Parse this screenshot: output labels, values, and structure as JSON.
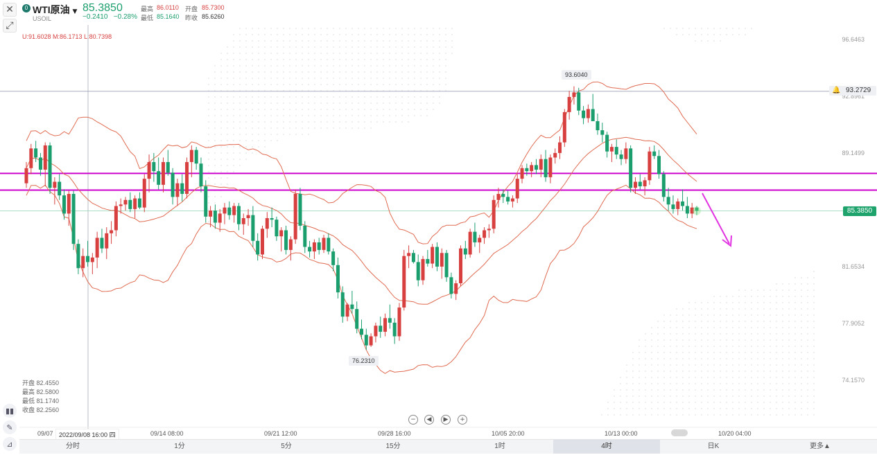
{
  "header": {
    "symbol_name": "WTI原油",
    "symbol_code": "USOIL",
    "symbol_badge": "0",
    "dropdown_icon": "caret-down-icon",
    "price": "85.3850",
    "change": "−0.2410",
    "change_pct": "−0.28%",
    "high_label": "最高",
    "high_value": "86.0110",
    "open_label": "开盘",
    "open_value": "85.7300",
    "low_label": "最低",
    "low_value": "85.1640",
    "prevclose_label": "昨收",
    "prevclose_value": "85.6260"
  },
  "boll": "U:91.6028 M:86.1713 L:80.7398",
  "ohlc_box": {
    "open": "开盘 82.4550",
    "high": "最高 82.5800",
    "low": "最低 81.1740",
    "close": "收盘 82.2560"
  },
  "cursor_time": "2022/09/08 16:00 四",
  "colors": {
    "up": "#d84040",
    "down": "#1a9e6e",
    "band": "#e06a50",
    "hline": "#cc00cc",
    "arrow": "#e233e2",
    "last": "#1da36b"
  },
  "icons": [
    "close-icon",
    "expand-icon",
    "indicator-icon",
    "pencil-icon",
    "measure-icon",
    "bell-icon"
  ],
  "nav": [
    "zoom-out-icon",
    "step-back-icon",
    "step-forward-icon",
    "zoom-in-icon"
  ],
  "tabs": [
    "分时",
    "1分",
    "5分",
    "15分",
    "1时",
    "4时",
    "日K",
    "更多▲"
  ],
  "active_tab": "4时",
  "chart_data": {
    "type": "candlestick",
    "interval": "4时",
    "y_axis_ticks": [
      96.6463,
      92.8961,
      89.1499,
      85.385,
      81.6534,
      77.9052,
      74.157
    ],
    "y_tick_labels": [
      "96.6463",
      "92.8961",
      "89.1499",
      "81.6534",
      "77.9052",
      "74.1570"
    ],
    "ylim": [
      72.6,
      98.8
    ],
    "x_axis_ticks": [
      "09/07",
      "09/14 08:00",
      "09/21 12:00",
      "09/28 16:00",
      "10/05 20:00",
      "10/13 00:00",
      "10/20 04:00"
    ],
    "last_price": "85.3850",
    "alert_price": "93.2729",
    "max_label": "93.6040",
    "min_label": "76.2310",
    "horizontal_lines": [
      87.85,
      86.75
    ],
    "bollinger": {
      "upper": "91.6028",
      "middle": "86.1713",
      "lower": "80.7398"
    },
    "candles_ohlc": [
      [
        87.2,
        88.6,
        86.9,
        88.2
      ],
      [
        88.2,
        89.8,
        87.8,
        89.5
      ],
      [
        89.5,
        90.0,
        88.6,
        88.9
      ],
      [
        88.9,
        89.2,
        87.7,
        88.1
      ],
      [
        88.1,
        89.9,
        87.0,
        89.7
      ],
      [
        89.7,
        89.9,
        86.5,
        86.9
      ],
      [
        86.9,
        87.6,
        85.8,
        87.3
      ],
      [
        87.3,
        87.8,
        86.1,
        86.4
      ],
      [
        86.4,
        86.8,
        84.8,
        85.2
      ],
      [
        85.2,
        86.7,
        84.4,
        86.5
      ],
      [
        86.5,
        86.7,
        82.8,
        83.2
      ],
      [
        83.2,
        83.5,
        81.2,
        81.6
      ],
      [
        81.6,
        82.9,
        81.0,
        82.4
      ],
      [
        82.4,
        83.4,
        81.7,
        82.0
      ],
      [
        82.0,
        82.6,
        81.2,
        82.3
      ],
      [
        82.3,
        84.0,
        81.6,
        83.6
      ],
      [
        83.6,
        84.2,
        82.6,
        82.9
      ],
      [
        82.9,
        84.3,
        82.2,
        83.9
      ],
      [
        83.9,
        84.7,
        83.2,
        84.1
      ],
      [
        84.1,
        86.0,
        83.7,
        85.7
      ],
      [
        85.7,
        86.2,
        85.2,
        85.8
      ],
      [
        85.8,
        86.3,
        85.4,
        86.1
      ],
      [
        86.1,
        86.6,
        85.3,
        85.5
      ],
      [
        85.5,
        86.4,
        84.9,
        86.2
      ],
      [
        86.2,
        86.6,
        85.5,
        85.6
      ],
      [
        85.6,
        87.8,
        85.3,
        87.5
      ],
      [
        87.5,
        89.1,
        86.6,
        88.6
      ],
      [
        88.6,
        89.2,
        87.3,
        88.0
      ],
      [
        88.0,
        88.9,
        86.8,
        87.1
      ],
      [
        87.1,
        88.9,
        86.6,
        88.6
      ],
      [
        88.6,
        89.4,
        87.7,
        87.9
      ],
      [
        87.9,
        88.2,
        85.8,
        86.3
      ],
      [
        86.3,
        87.5,
        85.7,
        87.2
      ],
      [
        87.2,
        87.8,
        86.0,
        86.5
      ],
      [
        86.5,
        88.9,
        86.2,
        88.6
      ],
      [
        88.6,
        89.7,
        87.6,
        89.4
      ],
      [
        89.4,
        89.6,
        88.1,
        88.5
      ],
      [
        88.5,
        88.9,
        86.6,
        87.0
      ],
      [
        87.0,
        87.4,
        84.6,
        85.0
      ],
      [
        85.0,
        85.7,
        84.3,
        85.4
      ],
      [
        85.4,
        85.8,
        84.2,
        84.6
      ],
      [
        84.6,
        85.5,
        84.0,
        85.2
      ],
      [
        85.2,
        85.9,
        84.5,
        85.6
      ],
      [
        85.6,
        86.0,
        84.8,
        85.1
      ],
      [
        85.1,
        85.9,
        84.6,
        85.7
      ],
      [
        85.7,
        85.9,
        84.1,
        84.5
      ],
      [
        84.5,
        85.2,
        83.8,
        84.9
      ],
      [
        84.9,
        85.5,
        84.4,
        85.1
      ],
      [
        85.1,
        85.7,
        83.0,
        83.4
      ],
      [
        83.4,
        83.9,
        82.1,
        82.5
      ],
      [
        82.5,
        84.4,
        82.2,
        84.2
      ],
      [
        84.2,
        85.3,
        83.6,
        84.9
      ],
      [
        84.9,
        85.6,
        84.3,
        84.8
      ],
      [
        84.8,
        85.0,
        83.4,
        83.7
      ],
      [
        83.7,
        84.3,
        82.7,
        84.1
      ],
      [
        84.1,
        84.4,
        82.5,
        82.8
      ],
      [
        82.8,
        83.7,
        82.1,
        83.5
      ],
      [
        83.5,
        86.8,
        83.2,
        86.5
      ],
      [
        86.5,
        86.9,
        84.1,
        84.4
      ],
      [
        84.4,
        84.7,
        82.6,
        83.0
      ],
      [
        83.0,
        83.4,
        82.3,
        82.7
      ],
      [
        82.7,
        83.5,
        82.2,
        83.3
      ],
      [
        83.3,
        83.6,
        82.5,
        82.8
      ],
      [
        82.8,
        83.8,
        82.6,
        83.6
      ],
      [
        83.6,
        83.9,
        82.5,
        82.7
      ],
      [
        82.7,
        82.9,
        81.4,
        81.8
      ],
      [
        81.8,
        82.3,
        79.6,
        80.0
      ],
      [
        80.0,
        80.4,
        78.0,
        78.4
      ],
      [
        78.4,
        79.3,
        78.1,
        79.2
      ],
      [
        79.2,
        80.1,
        78.6,
        78.9
      ],
      [
        78.9,
        79.4,
        77.3,
        77.6
      ],
      [
        77.6,
        78.2,
        76.9,
        77.2
      ],
      [
        77.2,
        77.6,
        76.2,
        76.5
      ],
      [
        76.5,
        77.3,
        76.4,
        77.1
      ],
      [
        77.1,
        78.0,
        76.7,
        77.8
      ],
      [
        77.8,
        78.4,
        77.0,
        77.4
      ],
      [
        77.4,
        78.6,
        77.1,
        78.3
      ],
      [
        78.3,
        79.2,
        77.6,
        78.0
      ],
      [
        78.0,
        78.3,
        76.6,
        77.1
      ],
      [
        77.1,
        79.3,
        76.8,
        79.0
      ],
      [
        79.0,
        82.8,
        78.8,
        82.4
      ],
      [
        82.4,
        83.1,
        81.6,
        82.6
      ],
      [
        82.6,
        82.8,
        81.9,
        82.0
      ],
      [
        82.0,
        82.5,
        80.4,
        80.8
      ],
      [
        80.8,
        82.4,
        80.5,
        82.2
      ],
      [
        82.2,
        82.8,
        81.7,
        81.9
      ],
      [
        81.9,
        83.2,
        81.6,
        83.0
      ],
      [
        83.0,
        83.3,
        81.4,
        81.7
      ],
      [
        81.7,
        82.9,
        80.9,
        82.6
      ],
      [
        82.6,
        82.8,
        80.7,
        81.0
      ],
      [
        81.0,
        81.3,
        79.6,
        79.9
      ],
      [
        79.9,
        80.8,
        79.5,
        80.6
      ],
      [
        80.6,
        83.1,
        80.4,
        82.9
      ],
      [
        82.9,
        83.4,
        82.2,
        82.5
      ],
      [
        82.5,
        84.2,
        82.3,
        84.0
      ],
      [
        84.0,
        84.6,
        83.0,
        83.3
      ],
      [
        83.3,
        83.8,
        82.6,
        83.6
      ],
      [
        83.6,
        84.3,
        83.2,
        84.1
      ],
      [
        84.1,
        84.5,
        83.6,
        84.2
      ],
      [
        84.2,
        86.4,
        83.9,
        86.1
      ],
      [
        86.1,
        86.9,
        85.6,
        86.5
      ],
      [
        86.5,
        86.8,
        85.9,
        86.3
      ],
      [
        86.3,
        86.7,
        85.8,
        86.0
      ],
      [
        86.0,
        86.4,
        85.6,
        86.2
      ],
      [
        86.2,
        87.8,
        85.9,
        87.5
      ],
      [
        87.5,
        88.4,
        87.2,
        88.2
      ],
      [
        88.2,
        88.5,
        87.7,
        88.0
      ],
      [
        88.0,
        88.6,
        87.6,
        88.4
      ],
      [
        88.4,
        88.8,
        87.8,
        88.1
      ],
      [
        88.1,
        89.1,
        87.6,
        88.8
      ],
      [
        88.8,
        89.4,
        87.3,
        87.6
      ],
      [
        87.6,
        89.1,
        87.2,
        88.9
      ],
      [
        88.9,
        89.5,
        88.5,
        89.2
      ],
      [
        89.2,
        90.3,
        88.8,
        89.9
      ],
      [
        89.9,
        92.1,
        89.6,
        91.9
      ],
      [
        91.9,
        93.3,
        91.4,
        92.9
      ],
      [
        92.9,
        93.6,
        92.4,
        93.2
      ],
      [
        93.2,
        93.5,
        91.7,
        92.0
      ],
      [
        92.0,
        92.3,
        91.1,
        91.5
      ],
      [
        91.5,
        92.4,
        91.2,
        92.1
      ],
      [
        92.1,
        93.1,
        91.5,
        91.3
      ],
      [
        91.3,
        91.8,
        90.4,
        90.7
      ],
      [
        90.7,
        91.2,
        89.9,
        90.4
      ],
      [
        90.4,
        90.6,
        88.9,
        89.3
      ],
      [
        89.3,
        89.8,
        88.6,
        89.6
      ],
      [
        89.6,
        90.1,
        88.8,
        89.1
      ],
      [
        89.1,
        89.4,
        88.4,
        88.8
      ],
      [
        88.8,
        89.9,
        88.5,
        89.5
      ],
      [
        89.5,
        89.7,
        86.6,
        86.9
      ],
      [
        86.9,
        87.6,
        86.5,
        87.3
      ],
      [
        87.3,
        87.8,
        86.8,
        87.0
      ],
      [
        87.0,
        87.6,
        86.4,
        87.4
      ],
      [
        87.4,
        89.6,
        87.1,
        89.3
      ],
      [
        89.3,
        89.7,
        88.8,
        89.0
      ],
      [
        89.0,
        89.4,
        87.5,
        87.8
      ],
      [
        87.8,
        88.0,
        86.0,
        86.3
      ],
      [
        86.3,
        86.9,
        85.4,
        85.8
      ],
      [
        85.8,
        86.4,
        85.2,
        85.5
      ],
      [
        85.5,
        86.2,
        85.1,
        86.0
      ],
      [
        86.0,
        86.8,
        85.4,
        85.7
      ],
      [
        85.7,
        86.3,
        84.9,
        85.2
      ],
      [
        85.2,
        85.9,
        84.9,
        85.6
      ],
      [
        85.6,
        85.7,
        85.1,
        85.385
      ]
    ]
  }
}
